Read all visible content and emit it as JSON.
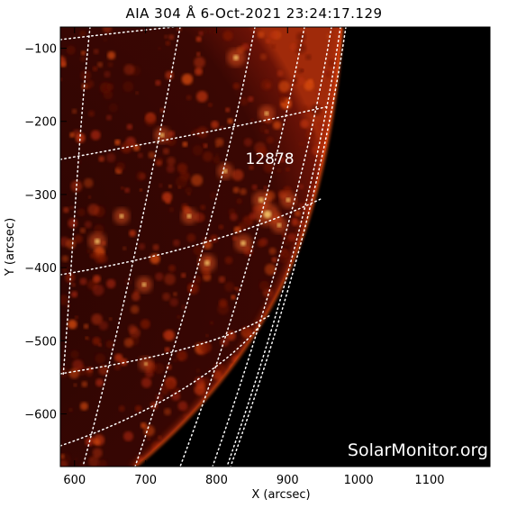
{
  "title": "AIA 304 Å  6-Oct-2021 23:24:17.129",
  "x_axis": {
    "label": "X (arcsec)",
    "range": [
      580,
      1185
    ],
    "ticks": [
      {
        "value": 600,
        "label": "600"
      },
      {
        "value": 700,
        "label": "700"
      },
      {
        "value": 800,
        "label": "800"
      },
      {
        "value": 900,
        "label": "900"
      },
      {
        "value": 1000,
        "label": "1000"
      },
      {
        "value": 1100,
        "label": "1100"
      }
    ]
  },
  "y_axis": {
    "label": "Y (arcsec)",
    "range": [
      -672,
      -71
    ],
    "ticks": [
      {
        "value": -100,
        "label": "−100"
      },
      {
        "value": -200,
        "label": "−200"
      },
      {
        "value": -300,
        "label": "−300"
      },
      {
        "value": -400,
        "label": "−400"
      },
      {
        "value": -500,
        "label": "−500"
      },
      {
        "value": -600,
        "label": "−600"
      }
    ]
  },
  "active_region": {
    "label": "12878",
    "x": 875,
    "y": -258
  },
  "watermark": "SolarMonitor.org",
  "colors": {
    "background": "#000000",
    "limb": "#ff5a14",
    "grid": "#ffffff"
  }
}
